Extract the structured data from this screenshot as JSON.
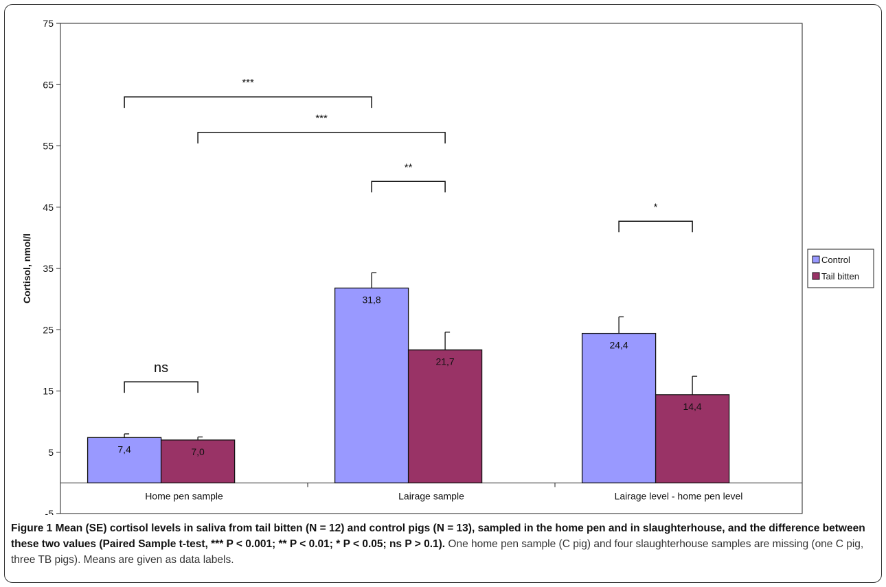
{
  "chart_data": {
    "type": "bar",
    "categories": [
      "Home pen sample",
      "Lairage sample",
      "Lairage level - home pen level"
    ],
    "series": [
      {
        "name": "Control",
        "values": [
          7.4,
          31.8,
          24.4
        ],
        "errors": [
          0.6,
          2.5,
          2.7
        ],
        "labels": [
          "7,4",
          "31,8",
          "24,4"
        ],
        "color": "#9999ff"
      },
      {
        "name": "Tail bitten",
        "values": [
          7.0,
          21.7,
          14.4
        ],
        "errors": [
          0.5,
          2.9,
          3.0
        ],
        "labels": [
          "7,0",
          "21,7",
          "14,4"
        ],
        "color": "#993366"
      }
    ],
    "ylabel": "Cortisol, nmol/l",
    "ylim": [
      -5,
      75
    ],
    "yticks": [
      -5,
      5,
      15,
      25,
      35,
      45,
      55,
      65,
      75
    ],
    "legend_position": "right",
    "annotations": [
      {
        "label": "ns",
        "from_category": 0,
        "from_series": 0,
        "to_category": 0,
        "to_series": 1,
        "y": 16.5
      },
      {
        "label": "***",
        "from_category": 0,
        "from_series": 0,
        "to_category": 1,
        "to_series": 0,
        "y": 63
      },
      {
        "label": "***",
        "from_category": 0,
        "from_series": 1,
        "to_category": 1,
        "to_series": 1,
        "y": 57.2
      },
      {
        "label": "**",
        "from_category": 1,
        "from_series": 0,
        "to_category": 1,
        "to_series": 1,
        "y": 49.2
      },
      {
        "label": "*",
        "from_category": 2,
        "from_series": 0,
        "to_category": 2,
        "to_series": 1,
        "y": 42.7
      }
    ]
  },
  "caption": {
    "bold": "Figure 1 Mean (SE) cortisol levels in saliva from tail bitten (N = 12) and control pigs (N = 13), sampled in the home pen and in slaughterhouse, and the difference between these two values (Paired Sample t-test, *** P < 0.001; ** P < 0.01; * P < 0.05; ns P > 0.1).",
    "normal": "One home pen sample (C pig) and four slaughterhouse samples are missing (one C pig, three TB pigs). Means are given as data labels."
  }
}
